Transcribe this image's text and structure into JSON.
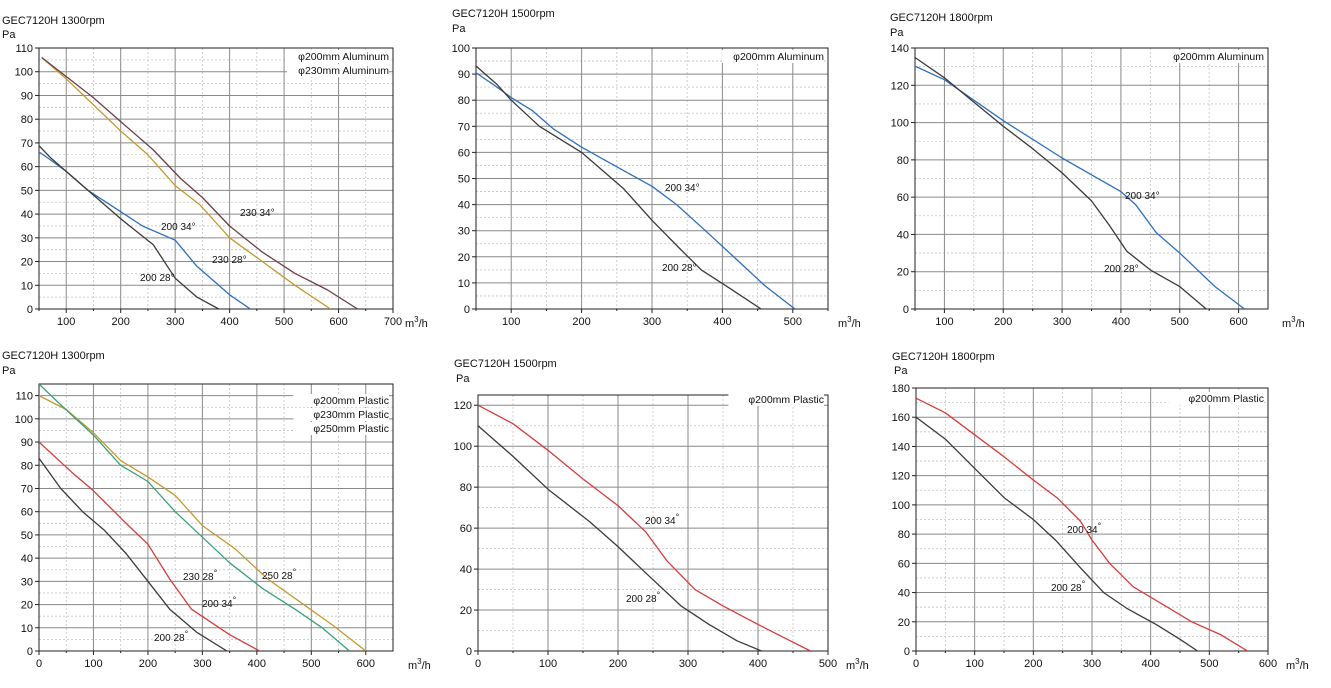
{
  "chart_data": [
    {
      "type": "line",
      "title": "GEC7120H 1300rpm",
      "ylabel": "Pa",
      "xlabel_main": "m",
      "xlabel_sup": "3",
      "xlabel_tail": "/h",
      "xlim": [
        50,
        700
      ],
      "ylim": [
        0,
        110
      ],
      "xticks": [
        100,
        200,
        300,
        400,
        500,
        600,
        700
      ],
      "yticks": [
        0,
        10,
        20,
        30,
        40,
        50,
        60,
        70,
        80,
        90,
        100,
        110
      ],
      "xminor": [
        50,
        150,
        250,
        350,
        450,
        550,
        650
      ],
      "yminor": [
        5,
        15,
        25,
        35,
        45,
        55,
        65,
        75,
        85,
        95,
        105
      ],
      "grid": true,
      "legend_placement": "top-right",
      "legend": [
        "φ200mm Aluminum",
        "φ230mm Aluminum"
      ],
      "series": [
        {
          "color": "#2f6fbf",
          "x": [
            45,
            70,
            100,
            140,
            200,
            240,
            300,
            340,
            400,
            438
          ],
          "y": [
            67,
            63,
            58,
            50,
            41,
            35,
            29,
            18,
            6,
            0
          ]
        },
        {
          "color": "#3b3b3b",
          "x": [
            45,
            70,
            100,
            150,
            200,
            260,
            300,
            340,
            380
          ],
          "y": [
            70,
            64,
            58,
            48,
            38,
            27,
            13,
            5,
            0
          ]
        },
        {
          "color": "#c49a2e",
          "x": [
            55,
            100,
            150,
            200,
            250,
            300,
            345,
            400,
            460,
            520,
            585
          ],
          "y": [
            106,
            97,
            86,
            75,
            65,
            52,
            44,
            30,
            20,
            10,
            0
          ]
        },
        {
          "color": "#6b3f4a",
          "x": [
            55,
            100,
            150,
            200,
            260,
            310,
            350,
            400,
            460,
            520,
            580,
            635
          ],
          "y": [
            106,
            98,
            89,
            79,
            67,
            55,
            47,
            35,
            24,
            15,
            8,
            0
          ]
        }
      ],
      "annotations": [
        "200 34°",
        "200 28°",
        "230 28°",
        "230 34°"
      ]
    },
    {
      "type": "line",
      "title": "GEC7120H 1500rpm",
      "ylabel": "Pa",
      "xlabel_main": "m",
      "xlabel_sup": "3",
      "xlabel_tail": "/h",
      "xlim": [
        50,
        550
      ],
      "ylim": [
        0,
        100
      ],
      "xticks": [
        100,
        200,
        300,
        400,
        500
      ],
      "yticks": [
        0,
        10,
        20,
        30,
        40,
        50,
        60,
        70,
        80,
        90,
        100
      ],
      "xminor": [
        50,
        150,
        250,
        350,
        450,
        550
      ],
      "yminor": [
        5,
        15,
        25,
        35,
        45,
        55,
        65,
        75,
        85,
        95
      ],
      "grid": true,
      "legend_placement": "top-right",
      "legend": [
        "φ200mm Aluminum"
      ],
      "series": [
        {
          "color": "#2f6fbf",
          "x": [
            42,
            80,
            100,
            130,
            160,
            200,
            260,
            300,
            335,
            380,
            420,
            460,
            503
          ],
          "y": [
            92,
            85,
            81,
            76,
            69,
            62,
            53,
            47,
            40,
            29,
            19,
            9,
            0
          ]
        },
        {
          "color": "#3b3b3b",
          "x": [
            42,
            80,
            100,
            140,
            200,
            260,
            300,
            340,
            370,
            410,
            455
          ],
          "y": [
            95,
            86,
            80,
            70,
            60,
            46,
            34,
            23,
            15,
            8,
            0
          ]
        }
      ],
      "annotations": [
        "200 34°",
        "200 28°"
      ]
    },
    {
      "type": "line",
      "title": "GEC7120H 1800rpm",
      "ylabel": "Pa",
      "xlabel_main": "m",
      "xlabel_sup": "3",
      "xlabel_tail": "/h",
      "xlim": [
        50,
        650
      ],
      "ylim": [
        0,
        140
      ],
      "xticks": [
        100,
        200,
        300,
        400,
        500,
        600
      ],
      "yticks": [
        0,
        20,
        40,
        60,
        80,
        100,
        120,
        140
      ],
      "xminor": [
        50,
        150,
        250,
        350,
        450,
        550
      ],
      "yminor": [
        10,
        30,
        50,
        70,
        90,
        110,
        130
      ],
      "grid": true,
      "legend_placement": "top-right",
      "legend": [
        "φ200mm Aluminum"
      ],
      "series": [
        {
          "color": "#2f6fbf",
          "x": [
            45,
            100,
            150,
            200,
            250,
            300,
            350,
            400,
            425,
            460,
            500,
            560,
            610
          ],
          "y": [
            131,
            123,
            112,
            101,
            91,
            81,
            72,
            63,
            56,
            41,
            30,
            12,
            0
          ]
        },
        {
          "color": "#3b3b3b",
          "x": [
            45,
            100,
            150,
            200,
            250,
            300,
            350,
            380,
            410,
            450,
            500,
            545
          ],
          "y": [
            136,
            124,
            111,
            98,
            86,
            73,
            58,
            45,
            31,
            21,
            12,
            0
          ]
        }
      ],
      "annotations": [
        "200 34°",
        "200 28°"
      ]
    },
    {
      "type": "line",
      "title": "GEC7120H 1300rpm",
      "ylabel": "Pa",
      "xlabel_main": "m",
      "xlabel_sup": "3",
      "xlabel_tail": "/h",
      "xlim": [
        0,
        650
      ],
      "ylim": [
        0,
        115
      ],
      "xticks": [
        0,
        100,
        200,
        300,
        400,
        500,
        600
      ],
      "yticks": [
        0,
        10,
        20,
        30,
        40,
        50,
        60,
        70,
        80,
        90,
        100,
        110
      ],
      "xminor": [
        50,
        150,
        250,
        350,
        450,
        550
      ],
      "yminor": [
        5,
        15,
        25,
        35,
        45,
        55,
        65,
        75,
        85,
        95,
        105
      ],
      "grid": true,
      "legend_placement": "top-right",
      "legend": [
        "φ200mm Plastic",
        "φ230mm Plastic",
        "φ250mm Plastic"
      ],
      "series": [
        {
          "color": "#d93c3c",
          "x": [
            0,
            60,
            100,
            160,
            200,
            240,
            280,
            350,
            405
          ],
          "y": [
            90,
            77,
            69,
            55,
            46,
            31,
            18,
            7,
            0
          ]
        },
        {
          "color": "#3b3b3b",
          "x": [
            0,
            40,
            80,
            120,
            160,
            200,
            240,
            290,
            345
          ],
          "y": [
            83,
            70,
            60,
            52,
            42,
            30,
            18,
            8,
            0
          ]
        },
        {
          "color": "#c49a2e",
          "x": [
            0,
            50,
            100,
            150,
            200,
            250,
            300,
            360,
            420,
            480,
            540,
            600
          ],
          "y": [
            110,
            104,
            94,
            82,
            75,
            67,
            54,
            44,
            31,
            21,
            11,
            0
          ]
        },
        {
          "color": "#3aa07a",
          "x": [
            0,
            40,
            100,
            150,
            200,
            250,
            300,
            350,
            410,
            470,
            520,
            570
          ],
          "y": [
            115,
            106,
            93,
            80,
            73,
            60,
            49,
            38,
            27,
            18,
            10,
            0
          ]
        }
      ],
      "annotations": [
        "230 28°",
        "250 28°",
        "200 34°",
        "200 28°"
      ]
    },
    {
      "type": "line",
      "title": "GEC7120H 1500rpm",
      "ylabel": "Pa",
      "xlabel_main": "m",
      "xlabel_sup": "3",
      "xlabel_tail": "/h",
      "xlim": [
        0,
        500
      ],
      "ylim": [
        0,
        125
      ],
      "xticks": [
        0,
        100,
        200,
        300,
        400,
        500
      ],
      "yticks": [
        0,
        20,
        40,
        60,
        80,
        100,
        120
      ],
      "xminor": [
        50,
        150,
        250,
        350,
        450
      ],
      "yminor": [
        10,
        30,
        50,
        70,
        90,
        110
      ],
      "grid": true,
      "legend_placement": "top-right",
      "legend": [
        "φ200mm Plastic"
      ],
      "series": [
        {
          "color": "#d93c3c",
          "x": [
            0,
            50,
            100,
            150,
            200,
            240,
            270,
            310,
            350,
            400,
            440,
            475
          ],
          "y": [
            120,
            111,
            98,
            84,
            71,
            58,
            44,
            30,
            22,
            13,
            6,
            0
          ]
        },
        {
          "color": "#3b3b3b",
          "x": [
            0,
            50,
            100,
            160,
            200,
            240,
            290,
            330,
            370,
            405
          ],
          "y": [
            110,
            95,
            79,
            63,
            51,
            38,
            22,
            13,
            5,
            0
          ]
        }
      ],
      "annotations": [
        "200 34°",
        "200 28°"
      ]
    },
    {
      "type": "line",
      "title": "GEC7120H 1800rpm",
      "ylabel": "Pa",
      "xlabel_main": "m",
      "xlabel_sup": "3",
      "xlabel_tail": "/h",
      "xlim": [
        0,
        600
      ],
      "ylim": [
        0,
        180
      ],
      "xticks": [
        0,
        100,
        200,
        300,
        400,
        500,
        600
      ],
      "yticks": [
        0,
        20,
        40,
        60,
        80,
        100,
        120,
        140,
        160,
        180
      ],
      "xminor": [
        50,
        150,
        250,
        350,
        450,
        550
      ],
      "yminor": [
        10,
        30,
        50,
        70,
        90,
        110,
        130,
        150,
        170
      ],
      "grid": true,
      "legend_placement": "top-right",
      "legend": [
        "φ200mm Plastic"
      ],
      "series": [
        {
          "color": "#d93c3c",
          "x": [
            0,
            50,
            100,
            150,
            200,
            240,
            280,
            300,
            330,
            370,
            420,
            470,
            520,
            565
          ],
          "y": [
            173,
            163,
            148,
            133,
            117,
            105,
            89,
            76,
            60,
            44,
            32,
            20,
            11,
            0
          ]
        },
        {
          "color": "#3b3b3b",
          "x": [
            0,
            50,
            100,
            150,
            200,
            240,
            280,
            320,
            360,
            410,
            450,
            480
          ],
          "y": [
            160,
            145,
            125,
            105,
            90,
            75,
            57,
            40,
            29,
            18,
            8,
            0
          ]
        }
      ],
      "annotations": [
        "200 34°",
        "200 28°"
      ]
    }
  ]
}
